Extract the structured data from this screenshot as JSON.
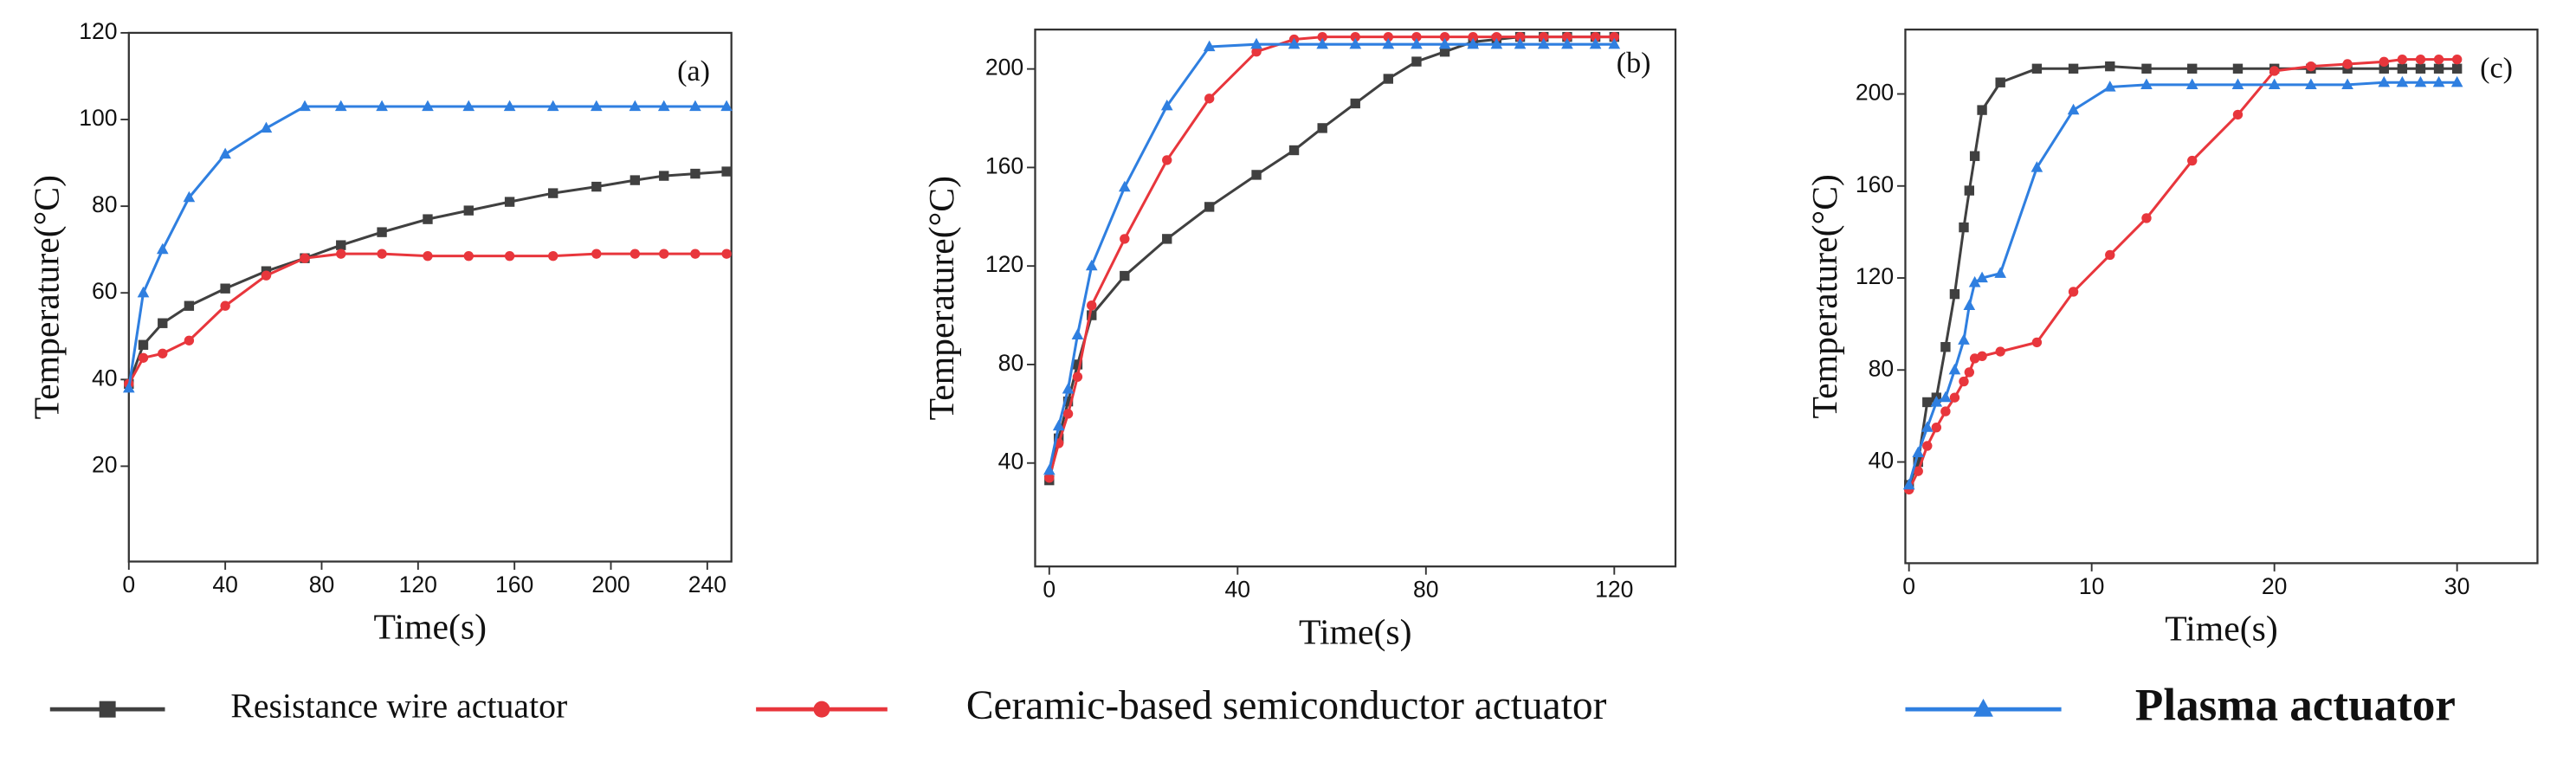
{
  "chart_data": [
    {
      "type": "line",
      "title": "(a)",
      "xlabel": "Time(s)",
      "ylabel": "Temperature(°C)",
      "x": [
        0,
        6,
        14,
        25,
        40,
        57,
        73,
        88,
        105,
        124,
        141,
        158,
        176,
        194,
        210,
        222,
        235,
        248
      ],
      "xlim": [
        0,
        250
      ],
      "xticks": [
        0,
        40,
        80,
        120,
        160,
        200,
        240
      ],
      "ylim": [
        -2,
        120
      ],
      "yticks": [
        20,
        40,
        60,
        80,
        100,
        120
      ],
      "grid": false,
      "series": [
        {
          "name": "Resistance wire actuator",
          "color": "#404040",
          "marker": "square",
          "values": [
            39,
            48,
            53,
            57,
            61,
            65,
            68,
            71,
            74,
            77,
            79,
            81,
            83,
            84.5,
            86,
            87,
            87.5,
            88
          ]
        },
        {
          "name": "Ceramic-based semiconductor actuator",
          "color": "#e8363c",
          "marker": "circle",
          "values": [
            39,
            45,
            46,
            49,
            57,
            64,
            68,
            69,
            69,
            68.5,
            68.5,
            68.5,
            68.5,
            69,
            69,
            69,
            69,
            69
          ]
        },
        {
          "name": "Plasma actuator",
          "color": "#2f7fe0",
          "marker": "triangle",
          "values": [
            38,
            60,
            70,
            82,
            92,
            98,
            103,
            103,
            103,
            103,
            103,
            103,
            103,
            103,
            103,
            103,
            103,
            103
          ]
        }
      ]
    },
    {
      "type": "line",
      "title": "(b)",
      "xlabel": "Time(s)",
      "ylabel": "Temperature(°C)",
      "x": [
        0,
        2,
        4,
        6,
        9,
        16,
        25,
        34,
        44,
        52,
        58,
        65,
        72,
        78,
        84,
        90,
        95,
        100,
        105,
        110,
        116,
        120
      ],
      "xlim": [
        -3,
        133
      ],
      "xticks": [
        0,
        40,
        80,
        120
      ],
      "ylim": [
        -2,
        216
      ],
      "yticks": [
        40,
        80,
        120,
        160,
        200
      ],
      "grid": false,
      "series": [
        {
          "color": "#404040",
          "marker": "square",
          "values": [
            33,
            50,
            65,
            80,
            100,
            116,
            131,
            144,
            157,
            167,
            176,
            186,
            196,
            203,
            207,
            211,
            212,
            213,
            213,
            213,
            213,
            213
          ]
        },
        {
          "color": "#e8363c",
          "marker": "circle",
          "values": [
            34,
            48,
            60,
            75,
            104,
            131,
            163,
            188,
            207,
            212,
            213,
            213,
            213,
            213,
            213,
            213,
            213,
            213,
            213,
            213,
            213,
            213
          ]
        },
        {
          "color": "#2f7fe0",
          "marker": "triangle",
          "values": [
            37,
            55,
            70,
            92,
            120,
            152,
            185,
            209,
            210,
            210,
            210,
            210,
            210,
            210,
            210,
            210,
            210,
            210,
            210,
            210,
            210,
            210
          ]
        }
      ]
    },
    {
      "type": "line",
      "title": "(c)",
      "xlabel": "Time(s)",
      "ylabel": "Temperature(°C)",
      "x": [
        0,
        0.5,
        1,
        1.5,
        2,
        2.5,
        3,
        3.3,
        3.6,
        4,
        5,
        7,
        9,
        11,
        13,
        15.5,
        18,
        20,
        22,
        24,
        26,
        27,
        28,
        29,
        30
      ],
      "xlim": [
        -0.2,
        34.4
      ],
      "xticks": [
        0,
        10,
        20,
        30
      ],
      "ylim": [
        -4,
        228
      ],
      "yticks": [
        40,
        80,
        120,
        160,
        200
      ],
      "grid": false,
      "series": [
        {
          "color": "#404040",
          "marker": "square",
          "values": [
            30,
            40,
            66,
            68,
            90,
            113,
            142,
            158,
            173,
            193,
            205,
            211,
            211,
            212,
            211,
            211,
            211,
            211,
            211,
            211,
            211,
            211,
            211,
            211,
            211
          ]
        },
        {
          "color": "#e8363c",
          "marker": "circle",
          "values": [
            28,
            36,
            47,
            55,
            62,
            68,
            75,
            79,
            85,
            86,
            88,
            92,
            114,
            130,
            146,
            171,
            191,
            210,
            212,
            213,
            214,
            215,
            215,
            215,
            215
          ]
        },
        {
          "color": "#2f7fe0",
          "marker": "triangle",
          "values": [
            30,
            44,
            55,
            66,
            68,
            80,
            93,
            108,
            118,
            120,
            122,
            168,
            193,
            203,
            204,
            204,
            204,
            204,
            204,
            204,
            205,
            205,
            205,
            205,
            205
          ]
        }
      ]
    }
  ]
}
